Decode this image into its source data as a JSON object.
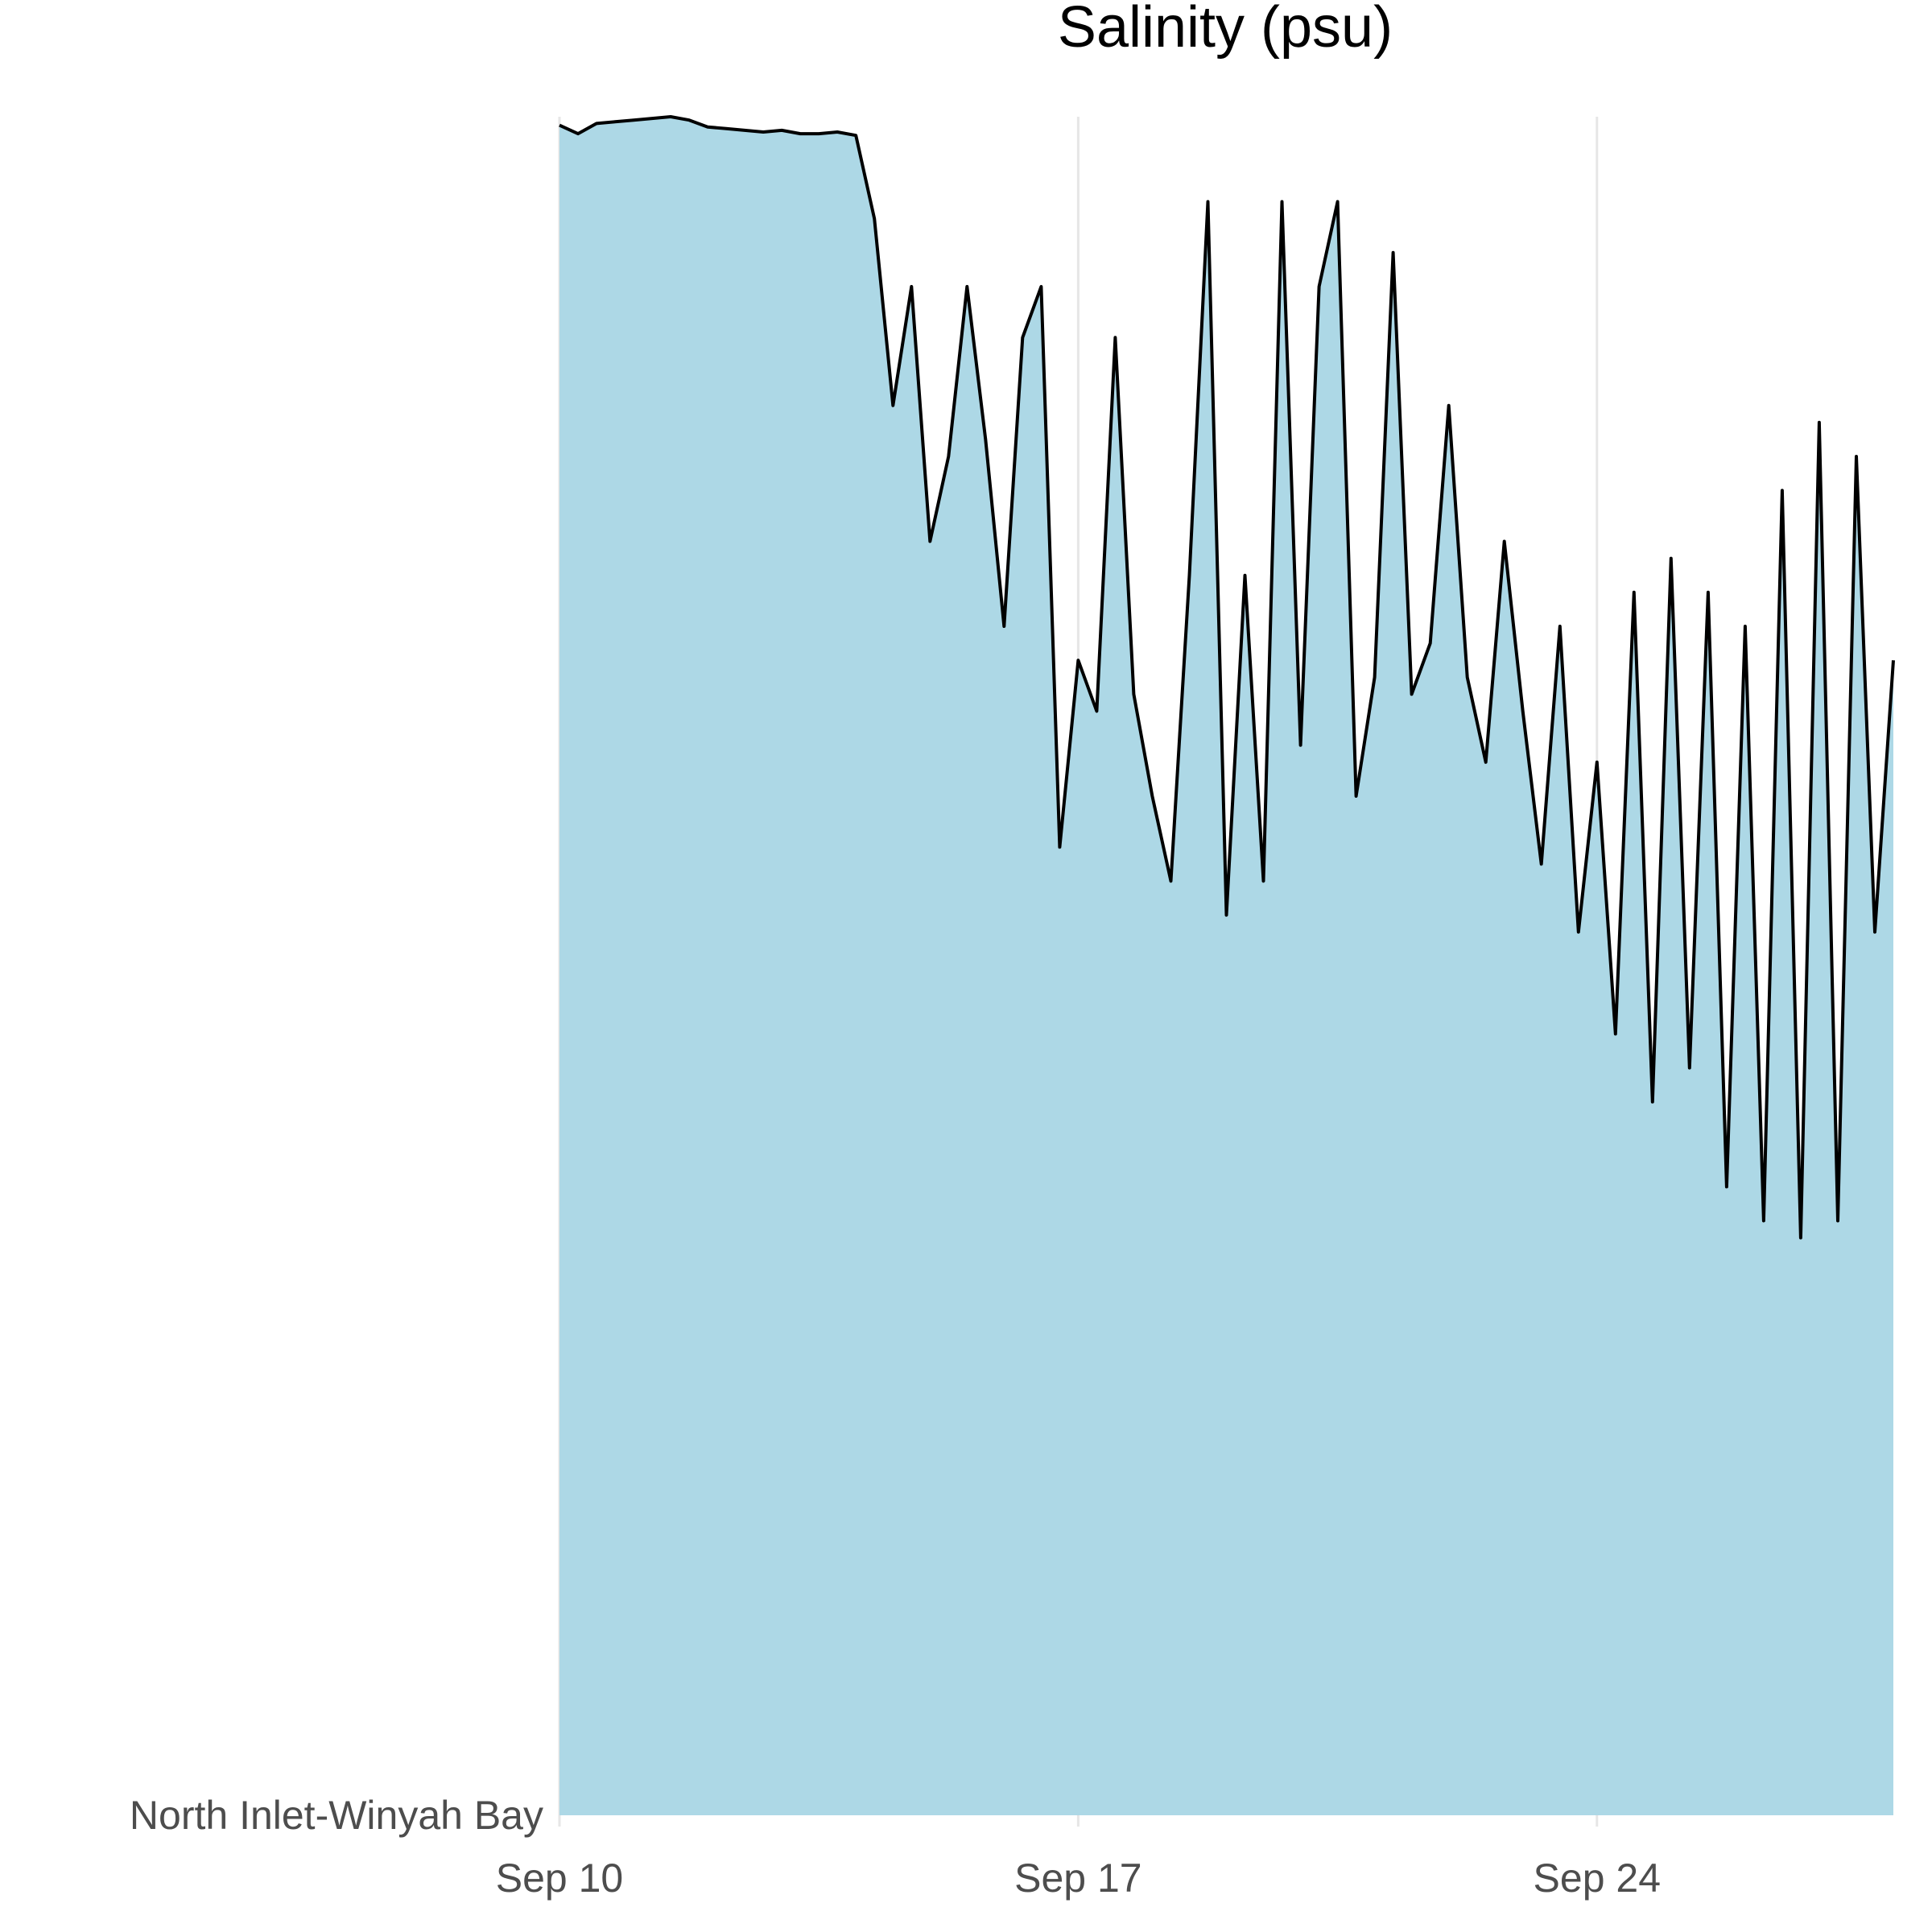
{
  "chart_data": {
    "type": "area",
    "title": "Salinity (psu)",
    "xlabel": "",
    "ylabel": "",
    "y_category_label": "North Inlet-Winyah Bay",
    "x_tick_labels": [
      "Sep 10",
      "Sep 17",
      "Sep 24"
    ],
    "x_tick_values": [
      "2015-09-10",
      "2015-09-17",
      "2015-09-24"
    ],
    "xlim": [
      "2015-09-10",
      "2015-09-28"
    ],
    "ylim": [
      0,
      1
    ],
    "grid": "vertical major lines only",
    "legend": "none",
    "fill_color": "#ADD8E6",
    "line_color": "#000000",
    "series": [
      {
        "x": [
          "2015-09-10 00:00",
          "2015-09-10 06:00",
          "2015-09-10 12:00",
          "2015-09-10 18:00",
          "2015-09-11 00:00",
          "2015-09-11 06:00",
          "2015-09-11 12:00",
          "2015-09-11 18:00",
          "2015-09-12 00:00",
          "2015-09-12 06:00",
          "2015-09-12 12:00",
          "2015-09-12 18:00",
          "2015-09-13 00:00",
          "2015-09-13 06:00",
          "2015-09-13 12:00",
          "2015-09-13 18:00",
          "2015-09-14 00:00",
          "2015-09-14 06:00",
          "2015-09-14 12:00",
          "2015-09-14 18:00",
          "2015-09-15 00:00",
          "2015-09-15 06:00",
          "2015-09-15 12:00",
          "2015-09-15 18:00",
          "2015-09-16 00:00",
          "2015-09-16 06:00",
          "2015-09-16 12:00",
          "2015-09-16 18:00",
          "2015-09-17 00:00",
          "2015-09-17 06:00",
          "2015-09-17 12:00",
          "2015-09-17 18:00",
          "2015-09-18 00:00",
          "2015-09-18 06:00",
          "2015-09-18 12:00",
          "2015-09-18 18:00",
          "2015-09-19 00:00",
          "2015-09-19 06:00",
          "2015-09-19 12:00",
          "2015-09-19 18:00",
          "2015-09-20 00:00",
          "2015-09-20 06:00",
          "2015-09-20 12:00",
          "2015-09-20 18:00",
          "2015-09-21 00:00",
          "2015-09-21 06:00",
          "2015-09-21 12:00",
          "2015-09-21 18:00",
          "2015-09-22 00:00",
          "2015-09-22 06:00",
          "2015-09-22 12:00",
          "2015-09-22 18:00",
          "2015-09-23 00:00",
          "2015-09-23 06:00",
          "2015-09-23 12:00",
          "2015-09-23 18:00",
          "2015-09-24 00:00",
          "2015-09-24 06:00",
          "2015-09-24 12:00",
          "2015-09-24 18:00",
          "2015-09-25 00:00",
          "2015-09-25 06:00",
          "2015-09-25 12:00",
          "2015-09-25 18:00",
          "2015-09-26 00:00",
          "2015-09-26 06:00",
          "2015-09-26 12:00",
          "2015-09-26 18:00",
          "2015-09-27 00:00",
          "2015-09-27 06:00",
          "2015-09-27 12:00",
          "2015-09-27 18:00",
          "2015-09-28 00:00"
        ],
        "values": [
          0.995,
          0.99,
          0.996,
          0.997,
          0.998,
          0.999,
          1.0,
          0.998,
          0.994,
          0.993,
          0.992,
          0.991,
          0.992,
          0.99,
          0.99,
          0.991,
          0.989,
          0.94,
          0.83,
          0.9,
          0.75,
          0.8,
          0.9,
          0.81,
          0.7,
          0.87,
          0.9,
          0.57,
          0.68,
          0.65,
          0.87,
          0.66,
          0.6,
          0.55,
          0.73,
          0.95,
          0.53,
          0.73,
          0.55,
          0.95,
          0.63,
          0.9,
          0.95,
          0.6,
          0.67,
          0.92,
          0.66,
          0.69,
          0.83,
          0.67,
          0.62,
          0.75,
          0.65,
          0.56,
          0.7,
          0.52,
          0.62,
          0.46,
          0.72,
          0.42,
          0.74,
          0.44,
          0.72,
          0.37,
          0.7,
          0.35,
          0.78,
          0.34,
          0.82,
          0.35,
          0.8,
          0.52,
          0.68
        ]
      }
    ]
  }
}
